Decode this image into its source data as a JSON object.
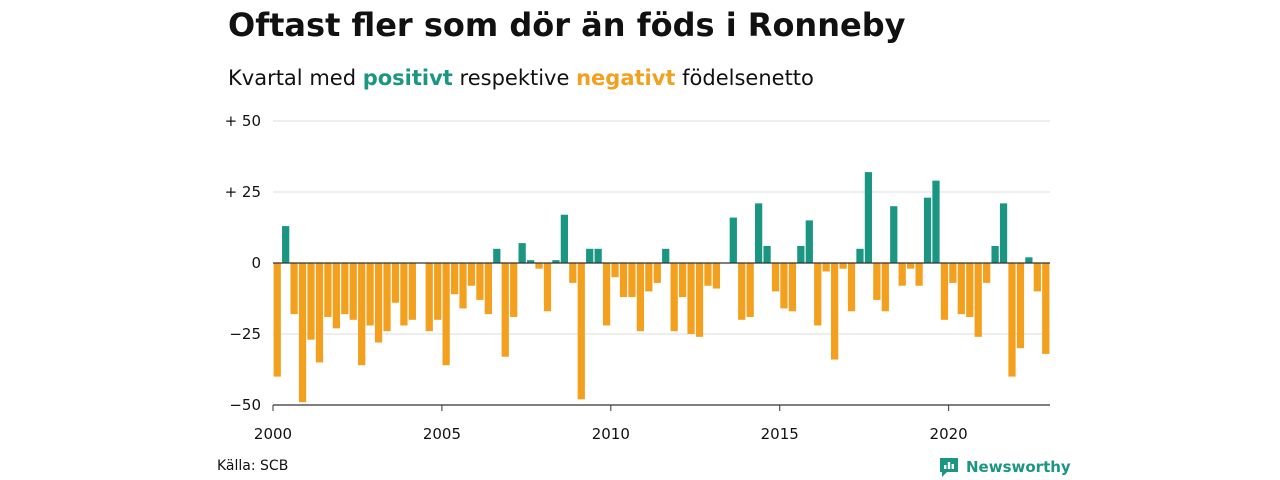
{
  "title": "Oftast fler som dör än föds i Ronneby",
  "subtitle": {
    "prefix": "Kvartal med",
    "positive_word": "positivt",
    "middle": "respektive",
    "negative_word": "negativt",
    "suffix": "födelsenetto"
  },
  "source": "Källa: SCB",
  "brand": {
    "name": "Newsworthy",
    "icon": "newsworthy-logo-icon"
  },
  "colors": {
    "positive": "#1a9682",
    "negative": "#f2a01e",
    "grid": "#dddddd",
    "axis": "#333333",
    "text": "#111111"
  },
  "chart_data": {
    "type": "bar",
    "x_start": 2000,
    "x_period": "quarter",
    "ylim": [
      -50,
      50
    ],
    "yticks": [
      50,
      25,
      0,
      -25,
      -50
    ],
    "ytick_labels": [
      "+ 50",
      "+ 25",
      "0",
      "−25",
      "−50"
    ],
    "xticks": [
      2000,
      2005,
      2010,
      2015,
      2020
    ],
    "xtick_labels": [
      "2000",
      "2005",
      "2010",
      "2015",
      "2020"
    ],
    "grid": true,
    "values": [
      -40,
      13,
      -18,
      -49,
      -27,
      -35,
      -19,
      -23,
      -18,
      -20,
      -36,
      -22,
      -28,
      -24,
      -14,
      -22,
      -20,
      0,
      -24,
      -20,
      -36,
      -11,
      -16,
      -8,
      -13,
      -18,
      5,
      -33,
      -19,
      7,
      1,
      -2,
      -17,
      1,
      17,
      -7,
      -48,
      5,
      5,
      -22,
      -5,
      -12,
      -12,
      -24,
      -10,
      -7,
      5,
      -24,
      -12,
      -25,
      -26,
      -8,
      -9,
      0,
      16,
      -20,
      -19,
      21,
      6,
      -10,
      -16,
      -17,
      6,
      15,
      -22,
      -3,
      -34,
      -2,
      -17,
      5,
      32,
      -13,
      -17,
      20,
      -8,
      -2,
      -8,
      23,
      29,
      -20,
      -7,
      -18,
      -19,
      -26,
      -7,
      6,
      21,
      -40,
      -30,
      2,
      -10,
      -32
    ]
  }
}
